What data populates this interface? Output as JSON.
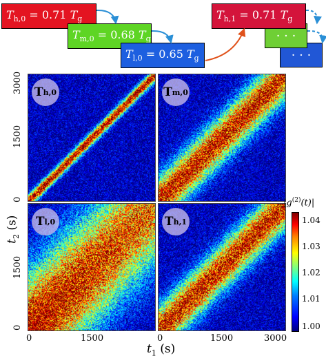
{
  "temps": {
    "hot0": {
      "sym": "T",
      "sub": "h,0",
      "value": "0.71",
      "unit": "T",
      "unit_sub": "g",
      "color": "#e41421"
    },
    "med0": {
      "sym": "T",
      "sub": "m,0",
      "value": "0.68",
      "unit": "T",
      "unit_sub": "g",
      "color": "#5ed524"
    },
    "low0": {
      "sym": "T",
      "sub": "l,0",
      "value": "0.65",
      "unit": "T",
      "unit_sub": "g",
      "color": "#1d5fe0"
    },
    "hot1": {
      "sym": "T",
      "sub": "h,1",
      "value": "0.71",
      "unit": "T",
      "unit_sub": "g",
      "color": "#d4143b"
    },
    "stack_mid_label": "· · ·",
    "stack_back_label": "· · ·",
    "stack_mid_color": "#6fcf35",
    "stack_back_color": "#2157d6",
    "arrow_color_blue": "#2a8fd6",
    "arrow_color_orange": "#e0521b"
  },
  "panels": [
    {
      "badge": "T",
      "badge_sub": "h,0",
      "kind": "narrow"
    },
    {
      "badge": "T",
      "badge_sub": "m,0",
      "kind": "medium"
    },
    {
      "badge": "T",
      "badge_sub": "l,0",
      "kind": "wide"
    },
    {
      "badge": "T",
      "badge_sub": "h,1",
      "kind": "medium"
    }
  ],
  "axes": {
    "ylabel_main": "t",
    "ylabel_sub": "2",
    "ylabel_unit": " (s)",
    "xlabel_main": "t",
    "xlabel_sub": "1",
    "xlabel_unit": " (s)",
    "top_yticks": [
      "3000",
      "1500",
      "0"
    ],
    "bottom_yticks": [
      "1500",
      "0"
    ],
    "left_xticks": [
      "0",
      "1500"
    ],
    "right_xticks": [
      "0",
      "1500",
      "3000"
    ]
  },
  "colorbar": {
    "label": "|g(2)(t)|",
    "label_main": "|g",
    "label_sup": "(2)",
    "label_end": "(t)|",
    "ticks": [
      "1.04",
      "1.03",
      "1.02",
      "1.01",
      "1.00"
    ],
    "range": [
      1.0,
      1.045
    ]
  },
  "chart_data": {
    "type": "heatmap",
    "title": "",
    "xlabel": "t1 (s)",
    "ylabel": "t2 (s)",
    "xlim": [
      0,
      3200
    ],
    "ylim": [
      0,
      3200
    ],
    "colorbar_label": "|g(2)(t)|",
    "colorbar_range": [
      1.0,
      1.045
    ],
    "series": [
      {
        "name": "T h,0",
        "panel": "top-left",
        "diagonal_peak": 1.04,
        "background": 1.0
      },
      {
        "name": "T m,0",
        "panel": "top-right",
        "diagonal_peak": 1.04,
        "background": 1.0
      },
      {
        "name": "T l,0",
        "panel": "bottom-left",
        "diagonal_peak": 1.04,
        "background": 1.0
      },
      {
        "name": "T h,1",
        "panel": "bottom-right",
        "diagonal_peak": 1.04,
        "background": 1.0
      }
    ]
  }
}
